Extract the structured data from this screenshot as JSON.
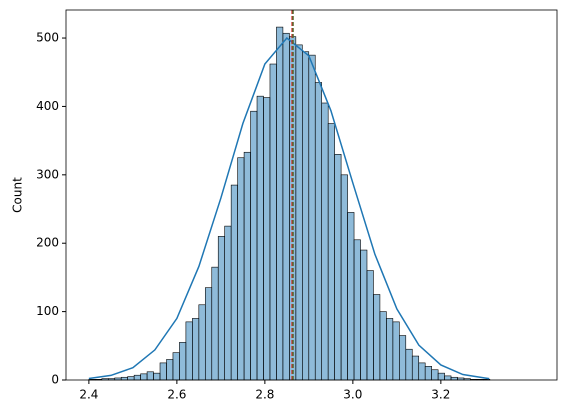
{
  "chart_data": {
    "type": "histogram",
    "y_label": "Count",
    "bins": [
      2.4,
      2.4147,
      2.4294,
      2.4441,
      2.4588,
      2.4735,
      2.4882,
      2.5029,
      2.5176,
      2.5323,
      2.547,
      2.5617,
      2.5764,
      2.5911,
      2.6058,
      2.6205,
      2.6352,
      2.6499,
      2.6646,
      2.6793,
      2.694,
      2.7087,
      2.7234,
      2.7381,
      2.7528,
      2.7675,
      2.7822,
      2.7969,
      2.8116,
      2.8263,
      2.841,
      2.8557,
      2.8704,
      2.8851,
      2.8998,
      2.9145,
      2.9292,
      2.9439,
      2.9586,
      2.9733,
      2.988,
      3.0027,
      3.0174,
      3.0321,
      3.0468,
      3.0615,
      3.0762,
      3.0909,
      3.1056,
      3.1203,
      3.135,
      3.1497,
      3.1644,
      3.1791,
      3.1938,
      3.2085,
      3.2232,
      3.2379,
      3.2526,
      3.2673,
      3.282,
      3.2967,
      3.3114
    ],
    "counts": [
      1,
      1,
      2,
      2,
      3,
      4,
      5,
      7,
      9,
      12,
      10,
      25,
      30,
      40,
      55,
      85,
      90,
      110,
      135,
      165,
      210,
      225,
      285,
      325,
      333,
      393,
      415,
      413,
      462,
      516,
      507,
      502,
      490,
      480,
      475,
      435,
      405,
      375,
      330,
      300,
      245,
      205,
      190,
      160,
      125,
      100,
      90,
      85,
      65,
      45,
      35,
      25,
      20,
      15,
      10,
      6,
      4,
      3,
      2,
      1,
      1,
      1
    ],
    "color": "#1f77b4",
    "kde": {
      "color": "#1f77b4",
      "x": [
        2.4,
        2.45,
        2.5,
        2.55,
        2.6,
        2.65,
        2.7,
        2.75,
        2.8,
        2.85,
        2.9,
        2.95,
        3.0,
        3.05,
        3.1,
        3.15,
        3.2,
        3.25,
        3.3,
        3.31
      ],
      "y": [
        2.2,
        6.7,
        18,
        44,
        90,
        166,
        266,
        375,
        462,
        500,
        474,
        394,
        288,
        184,
        104,
        51,
        22,
        8,
        3,
        2
      ]
    },
    "vlines": [
      {
        "x": 2.862,
        "color": "#d62728"
      },
      {
        "x": 2.864,
        "color": "#556b2f"
      }
    ],
    "xlim": [
      2.348,
      3.464
    ],
    "ylim": [
      0,
      541
    ],
    "xticks": [
      2.4,
      2.6,
      2.8,
      {
        "value": 3,
        "label": "3.0"
      },
      3.2
    ],
    "yticks": [
      0,
      100,
      200,
      300,
      400,
      500
    ]
  }
}
